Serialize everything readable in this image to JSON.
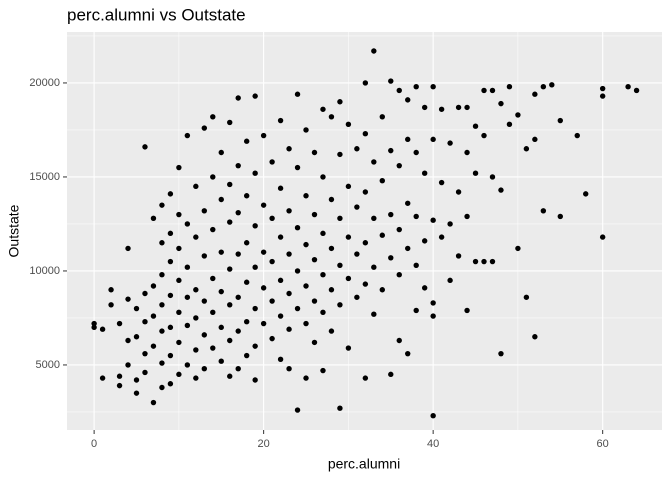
{
  "chart_data": {
    "type": "scatter",
    "title": "perc.alumni vs Outstate",
    "x_label": "perc.alumni",
    "y_label": "Outstate",
    "xlim": [
      -3.2,
      67.0
    ],
    "ylim": [
      1540,
      22710
    ],
    "xticks": [
      0,
      20,
      40,
      60
    ],
    "yticks": [
      5000,
      10000,
      15000,
      20000
    ],
    "x_minor_grid": [
      10,
      30,
      50
    ],
    "y_minor_grid": [
      2500,
      7500,
      12500,
      17500,
      22500
    ],
    "grid": true,
    "color": "#000000",
    "panel_color": "#ebebeb",
    "x": [
      0,
      0,
      1,
      1,
      2,
      2,
      3,
      3,
      3,
      4,
      4,
      4,
      4,
      5,
      5,
      5,
      5,
      6,
      6,
      6,
      6,
      6,
      7,
      7,
      7,
      7,
      7,
      8,
      8,
      8,
      8,
      8,
      8,
      8,
      9,
      9,
      9,
      9,
      9,
      9,
      9,
      10,
      10,
      10,
      10,
      10,
      10,
      10,
      11,
      11,
      11,
      11,
      11,
      11,
      12,
      12,
      12,
      12,
      12,
      12,
      13,
      13,
      13,
      13,
      13,
      13,
      14,
      14,
      14,
      14,
      14,
      14,
      15,
      15,
      15,
      15,
      15,
      15,
      16,
      16,
      16,
      16,
      16,
      16,
      16,
      17,
      17,
      17,
      17,
      17,
      17,
      17,
      18,
      18,
      18,
      18,
      18,
      18,
      19,
      19,
      19,
      19,
      19,
      19,
      19,
      20,
      20,
      20,
      20,
      20,
      21,
      21,
      21,
      21,
      21,
      22,
      22,
      22,
      22,
      22,
      22,
      23,
      23,
      23,
      23,
      23,
      23,
      24,
      24,
      24,
      24,
      24,
      24,
      25,
      25,
      25,
      25,
      25,
      25,
      26,
      26,
      26,
      26,
      26,
      27,
      27,
      27,
      27,
      27,
      27,
      28,
      28,
      28,
      28,
      28,
      29,
      29,
      29,
      29,
      29,
      29,
      30,
      30,
      30,
      30,
      30,
      31,
      31,
      31,
      31,
      32,
      32,
      32,
      32,
      32,
      32,
      33,
      33,
      33,
      33,
      33,
      34,
      34,
      34,
      34,
      35,
      35,
      35,
      35,
      35,
      36,
      36,
      36,
      36,
      36,
      37,
      37,
      37,
      37,
      37,
      38,
      38,
      38,
      38,
      38,
      39,
      39,
      39,
      39,
      40,
      40,
      40,
      40,
      40,
      40,
      41,
      41,
      41,
      42,
      42,
      42,
      43,
      43,
      43,
      44,
      44,
      44,
      44,
      45,
      45,
      45,
      46,
      46,
      46,
      47,
      47,
      47,
      48,
      48,
      48,
      49,
      49,
      50,
      50,
      51,
      51,
      52,
      52,
      52,
      53,
      53,
      54,
      55,
      55,
      57,
      58,
      60,
      60,
      60,
      63,
      64
    ],
    "y": [
      7200,
      7000,
      6900,
      4300,
      9000,
      8200,
      7200,
      4400,
      3900,
      11200,
      8500,
      6300,
      5000,
      8000,
      6500,
      4200,
      3500,
      16600,
      8800,
      7300,
      5600,
      4600,
      12800,
      9200,
      7600,
      6000,
      3000,
      13500,
      11500,
      9800,
      8200,
      6800,
      5100,
      3800,
      14100,
      12000,
      10500,
      8700,
      7000,
      5500,
      4000,
      15500,
      13000,
      11200,
      9500,
      7800,
      6200,
      4500,
      17200,
      12500,
      10200,
      8600,
      7100,
      5000,
      14500,
      11800,
      9000,
      7500,
      5800,
      4300,
      17600,
      13200,
      10800,
      8400,
      6600,
      4800,
      18200,
      15000,
      12200,
      9600,
      7800,
      5900,
      16300,
      13800,
      11000,
      8900,
      7000,
      5200,
      17900,
      14600,
      12600,
      10100,
      8200,
      6300,
      4400,
      19200,
      15600,
      13100,
      10900,
      8600,
      6800,
      4800,
      16900,
      14000,
      11500,
      9400,
      7300,
      5500,
      19300,
      15200,
      12400,
      10200,
      8000,
      6000,
      4200,
      17200,
      13500,
      11000,
      9100,
      7200,
      15800,
      12800,
      10500,
      8400,
      6400,
      18000,
      14400,
      11800,
      9500,
      7600,
      5300,
      16500,
      13200,
      10900,
      8800,
      6900,
      4800,
      19400,
      15500,
      12300,
      10000,
      8000,
      2600,
      17500,
      14000,
      11400,
      9200,
      7200,
      4300,
      16300,
      13000,
      10600,
      8400,
      6200,
      18600,
      15000,
      12000,
      9800,
      7800,
      4700,
      18200,
      13800,
      11200,
      9000,
      6800,
      19000,
      16200,
      12800,
      10300,
      8200,
      2700,
      17800,
      14500,
      11800,
      9600,
      5900,
      16500,
      13400,
      10900,
      8600,
      20000,
      17300,
      14200,
      11500,
      9300,
      4300,
      21700,
      15800,
      12800,
      10200,
      7700,
      18200,
      14800,
      11900,
      9000,
      20100,
      16400,
      13000,
      10700,
      4500,
      19600,
      15600,
      12200,
      9800,
      6300,
      19100,
      17000,
      13600,
      11200,
      5600,
      19800,
      16300,
      12900,
      10300,
      7900,
      18700,
      15200,
      11600,
      9100,
      19800,
      17000,
      12700,
      8300,
      7600,
      2300,
      18600,
      14700,
      11800,
      16800,
      12500,
      9500,
      18700,
      14200,
      10800,
      18700,
      16300,
      12900,
      7900,
      17700,
      15200,
      10500,
      19600,
      17200,
      10500,
      19600,
      15000,
      10500,
      18900,
      14300,
      5600,
      19800,
      17800,
      18300,
      11200,
      16500,
      8600,
      19400,
      17000,
      6500,
      19800,
      13200,
      19900,
      18000,
      12900,
      17200,
      14100,
      19700,
      19300,
      11800,
      19800,
      19600
    ]
  }
}
